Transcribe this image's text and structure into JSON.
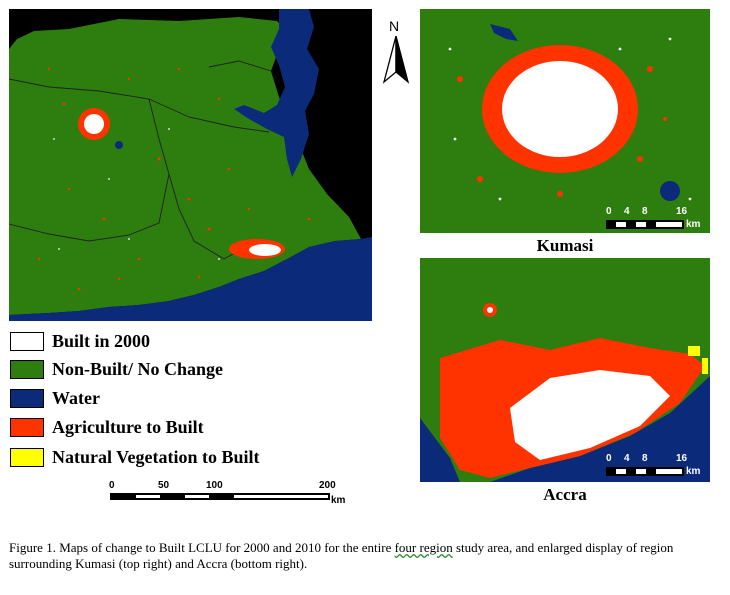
{
  "north_arrow": {
    "label": "N"
  },
  "legend": [
    {
      "label": "Built in 2000",
      "color": "#ffffff"
    },
    {
      "label": "Non-Built/ No Change",
      "color": "#2e7d0f"
    },
    {
      "label": "Water",
      "color": "#0b2a7a"
    },
    {
      "label": "Agriculture to Built",
      "color": "#ff3300"
    },
    {
      "label": "Natural Vegetation to Built",
      "color": "#ffff00"
    }
  ],
  "main_scalebar": {
    "ticks": [
      "0",
      "50",
      "100",
      "200"
    ],
    "unit": "km"
  },
  "inset_scalebar_kumasi": {
    "ticks": [
      "0",
      "4",
      "8",
      "16"
    ],
    "unit": "km"
  },
  "inset_scalebar_accra": {
    "ticks": [
      "0",
      "4",
      "8",
      "16"
    ],
    "unit": "km"
  },
  "inset_titles": {
    "kumasi": "Kumasi",
    "accra": "Accra"
  },
  "caption": {
    "before": "Figure 1. Maps of change to Built LCLU for 2000 and 2010 for the entire ",
    "squiggle": "four region",
    "after": " study area, and enlarged display of region surrounding Kumasi (top right) and Accra (bottom right)."
  },
  "colors": {
    "green": "#2e7d0f",
    "water": "#0b2a7a",
    "red": "#ff3300",
    "black": "#000000",
    "white": "#ffffff"
  }
}
